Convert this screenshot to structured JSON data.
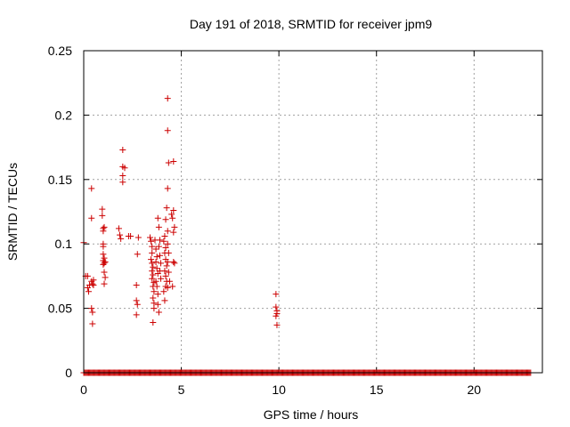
{
  "chart_data": {
    "type": "scatter",
    "title": "Day 191 of 2018, SRMTID for receiver jpm9",
    "xlabel": "GPS time / hours",
    "ylabel": "SRMTID / TECUs",
    "xlim": [
      0,
      23.5
    ],
    "ylim": [
      0,
      0.25
    ],
    "xticks": [
      0,
      5,
      10,
      15,
      20
    ],
    "yticks": [
      0,
      0.05,
      0.1,
      0.15,
      0.2,
      0.25
    ],
    "xtick_labels": [
      "0",
      "5",
      "10",
      "15",
      "20"
    ],
    "ytick_labels": [
      "0",
      "0.05",
      "0.1",
      "0.15",
      "0.2",
      "0.25"
    ],
    "grid": true,
    "series": [
      {
        "name": "SRMTID",
        "color": "#cc0000",
        "marker": "+",
        "points": [
          [
            0.0,
            0.101
          ],
          [
            0.1,
            0.075
          ],
          [
            0.2,
            0.075
          ],
          [
            0.2,
            0.066
          ],
          [
            0.25,
            0.063
          ],
          [
            0.3,
            0.068
          ],
          [
            0.4,
            0.143
          ],
          [
            0.4,
            0.12
          ],
          [
            0.4,
            0.071
          ],
          [
            0.45,
            0.069
          ],
          [
            0.4,
            0.05
          ],
          [
            0.45,
            0.047
          ],
          [
            0.45,
            0.038
          ],
          [
            0.5,
            0.068
          ],
          [
            0.5,
            0.072
          ],
          [
            0.95,
            0.127
          ],
          [
            0.95,
            0.122
          ],
          [
            1.0,
            0.112
          ],
          [
            1.0,
            0.11
          ],
          [
            1.05,
            0.113
          ],
          [
            1.0,
            0.1
          ],
          [
            1.0,
            0.098
          ],
          [
            1.0,
            0.092
          ],
          [
            1.05,
            0.089
          ],
          [
            1.0,
            0.087
          ],
          [
            1.05,
            0.085
          ],
          [
            1.1,
            0.086
          ],
          [
            1.0,
            0.084
          ],
          [
            1.05,
            0.078
          ],
          [
            1.1,
            0.074
          ],
          [
            1.05,
            0.069
          ],
          [
            1.8,
            0.112
          ],
          [
            1.85,
            0.107
          ],
          [
            1.9,
            0.104
          ],
          [
            2.0,
            0.173
          ],
          [
            2.0,
            0.16
          ],
          [
            2.1,
            0.159
          ],
          [
            2.0,
            0.153
          ],
          [
            2.0,
            0.148
          ],
          [
            2.3,
            0.106
          ],
          [
            2.4,
            0.106
          ],
          [
            2.7,
            0.068
          ],
          [
            2.7,
            0.056
          ],
          [
            2.75,
            0.053
          ],
          [
            2.7,
            0.045
          ],
          [
            2.8,
            0.105
          ],
          [
            2.75,
            0.092
          ],
          [
            3.4,
            0.105
          ],
          [
            3.45,
            0.102
          ],
          [
            3.5,
            0.098
          ],
          [
            3.5,
            0.093
          ],
          [
            3.45,
            0.088
          ],
          [
            3.5,
            0.085
          ],
          [
            3.55,
            0.082
          ],
          [
            3.5,
            0.079
          ],
          [
            3.55,
            0.076
          ],
          [
            3.5,
            0.073
          ],
          [
            3.6,
            0.07
          ],
          [
            3.55,
            0.067
          ],
          [
            3.6,
            0.063
          ],
          [
            3.55,
            0.058
          ],
          [
            3.6,
            0.054
          ],
          [
            3.6,
            0.05
          ],
          [
            3.55,
            0.039
          ],
          [
            3.65,
            0.103
          ],
          [
            3.7,
            0.096
          ],
          [
            3.75,
            0.09
          ],
          [
            3.7,
            0.086
          ],
          [
            3.75,
            0.081
          ],
          [
            3.8,
            0.077
          ],
          [
            3.7,
            0.071
          ],
          [
            3.75,
            0.067
          ],
          [
            3.8,
            0.061
          ],
          [
            3.8,
            0.053
          ],
          [
            3.85,
            0.047
          ],
          [
            3.8,
            0.12
          ],
          [
            3.85,
            0.113
          ],
          [
            3.9,
            0.103
          ],
          [
            3.85,
            0.098
          ],
          [
            3.9,
            0.091
          ],
          [
            3.95,
            0.085
          ],
          [
            3.9,
            0.079
          ],
          [
            3.95,
            0.073
          ],
          [
            4.15,
            0.106
          ],
          [
            4.1,
            0.102
          ],
          [
            4.2,
            0.097
          ],
          [
            4.15,
            0.093
          ],
          [
            4.2,
            0.088
          ],
          [
            4.25,
            0.083
          ],
          [
            4.15,
            0.079
          ],
          [
            4.2,
            0.075
          ],
          [
            4.25,
            0.071
          ],
          [
            4.2,
            0.067
          ],
          [
            4.1,
            0.063
          ],
          [
            4.15,
            0.056
          ],
          [
            4.3,
            0.213
          ],
          [
            4.3,
            0.188
          ],
          [
            4.35,
            0.163
          ],
          [
            4.3,
            0.143
          ],
          [
            4.25,
            0.128
          ],
          [
            4.2,
            0.119
          ],
          [
            4.3,
            0.11
          ],
          [
            4.3,
            0.1
          ],
          [
            4.35,
            0.093
          ],
          [
            4.3,
            0.086
          ],
          [
            4.35,
            0.078
          ],
          [
            4.4,
            0.071
          ],
          [
            4.3,
            0.066
          ],
          [
            4.6,
            0.164
          ],
          [
            4.5,
            0.123
          ],
          [
            4.6,
            0.126
          ],
          [
            4.55,
            0.12
          ],
          [
            4.65,
            0.113
          ],
          [
            4.6,
            0.109
          ],
          [
            4.6,
            0.086
          ],
          [
            4.65,
            0.085
          ],
          [
            4.55,
            0.067
          ],
          [
            9.85,
            0.061
          ],
          [
            9.85,
            0.051
          ],
          [
            9.9,
            0.048
          ],
          [
            9.9,
            0.046
          ],
          [
            9.85,
            0.044
          ],
          [
            9.9,
            0.037
          ]
        ],
        "baseline_y": 0,
        "baseline_x_start": 0,
        "baseline_x_end": 22.9,
        "baseline_step": 0.05
      }
    ]
  }
}
